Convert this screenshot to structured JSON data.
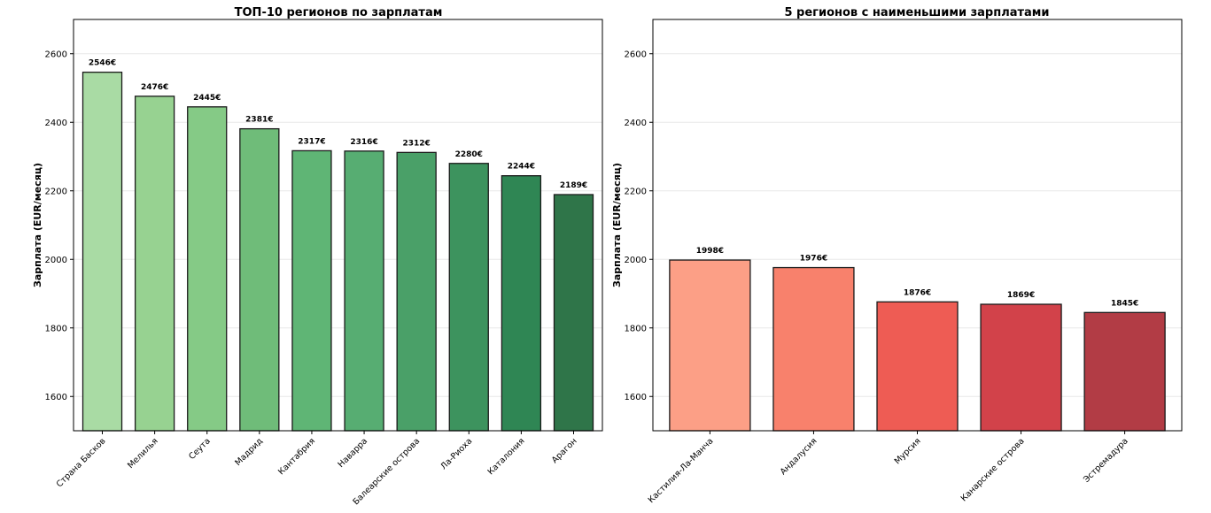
{
  "chart_data": [
    {
      "type": "bar",
      "title": "ТОП-10 регионов по зарплатам",
      "ylabel": "Зарплата (EUR/месяц)",
      "xlabel": "",
      "ylim": [
        1500,
        2700
      ],
      "yticks": [
        1600,
        1800,
        2000,
        2200,
        2400,
        2600
      ],
      "grid": true,
      "categories": [
        "Страна Басков",
        "Мелилья",
        "Сеута",
        "Мадрид",
        "Кантабрия",
        "Наварра",
        "Балеарские острова",
        "Ла-Риоха",
        "Каталония",
        "Арагон"
      ],
      "values": [
        2546,
        2476,
        2445,
        2381,
        2317,
        2316,
        2312,
        2280,
        2244,
        2189
      ],
      "value_labels": [
        "2546€",
        "2476€",
        "2445€",
        "2381€",
        "2317€",
        "2316€",
        "2312€",
        "2280€",
        "2244€",
        "2189€"
      ],
      "colors": [
        "#a9dba4",
        "#97d291",
        "#85ca86",
        "#6fbc79",
        "#5fb575",
        "#57ad72",
        "#4aa068",
        "#3d935e",
        "#2f8654",
        "#2f7549"
      ]
    },
    {
      "type": "bar",
      "title": "5 регионов с наименьшими зарплатами",
      "ylabel": "Зарплата (EUR/месяц)",
      "xlabel": "",
      "ylim": [
        1500,
        2700
      ],
      "yticks": [
        1600,
        1800,
        2000,
        2200,
        2400,
        2600
      ],
      "grid": true,
      "categories": [
        "Кастилия-Ла-Манча",
        "Андалусия",
        "Мурсия",
        "Канарские острова",
        "Эстремадура"
      ],
      "values": [
        1998,
        1976,
        1876,
        1869,
        1845
      ],
      "value_labels": [
        "1998€",
        "1976€",
        "1876€",
        "1869€",
        "1845€"
      ],
      "colors": [
        "#fc9f86",
        "#f8816c",
        "#ee5c54",
        "#d2424a",
        "#b23c45"
      ]
    }
  ]
}
